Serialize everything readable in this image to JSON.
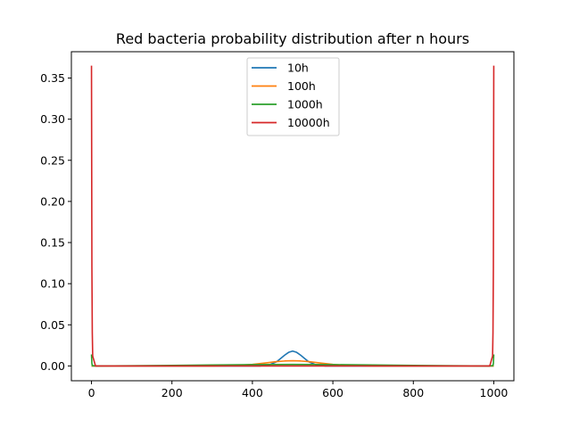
{
  "chart_data": {
    "type": "line",
    "title": "Red bacteria probability distribution after n hours",
    "xlabel": "",
    "ylabel": "",
    "xlim": [
      -50,
      1050
    ],
    "ylim": [
      -0.018,
      0.382
    ],
    "xticks": [
      0,
      200,
      400,
      600,
      800,
      1000
    ],
    "xtick_labels": [
      "0",
      "200",
      "400",
      "600",
      "800",
      "1000"
    ],
    "yticks": [
      0.0,
      0.05,
      0.1,
      0.15,
      0.2,
      0.25,
      0.3,
      0.35
    ],
    "ytick_labels": [
      "0.00",
      "0.05",
      "0.10",
      "0.15",
      "0.20",
      "0.25",
      "0.30",
      "0.35"
    ],
    "grid": false,
    "legend_position": "top-center",
    "series": [
      {
        "name": "10h",
        "color": "#1f77b4",
        "x": [
          0,
          2,
          10,
          100,
          200,
          300,
          400,
          420,
          440,
          460,
          470,
          480,
          490,
          500,
          510,
          520,
          530,
          540,
          560,
          580,
          600,
          700,
          800,
          900,
          990,
          998,
          1000
        ],
        "y": [
          0.0,
          0.0,
          0.0,
          0.0,
          0.0,
          0.0,
          0.0,
          0.0,
          0.0008,
          0.005,
          0.009,
          0.013,
          0.0165,
          0.018,
          0.0165,
          0.013,
          0.009,
          0.005,
          0.0008,
          0.0,
          0.0,
          0.0,
          0.0,
          0.0,
          0.0,
          0.0,
          0.0
        ]
      },
      {
        "name": "100h",
        "color": "#ff7f0e",
        "x": [
          0,
          2,
          10,
          100,
          200,
          300,
          350,
          400,
          430,
          460,
          480,
          500,
          520,
          540,
          570,
          600,
          650,
          700,
          800,
          900,
          990,
          998,
          1000
        ],
        "y": [
          0.0,
          0.0,
          0.0,
          0.0,
          0.0,
          0.0,
          0.0003,
          0.0018,
          0.0035,
          0.0052,
          0.006,
          0.0063,
          0.006,
          0.0052,
          0.0035,
          0.0018,
          0.0003,
          0.0,
          0.0,
          0.0,
          0.0,
          0.0,
          0.0
        ]
      },
      {
        "name": "1000h",
        "color": "#2ca02c",
        "x": [
          0,
          1,
          2,
          10,
          100,
          200,
          300,
          400,
          500,
          600,
          700,
          800,
          900,
          990,
          998,
          999,
          1000
        ],
        "y": [
          0.014,
          0.003,
          0.0005,
          0.0,
          0.0003,
          0.0007,
          0.0012,
          0.0016,
          0.0018,
          0.0016,
          0.0012,
          0.0007,
          0.0003,
          0.0,
          0.0005,
          0.003,
          0.014
        ]
      },
      {
        "name": "10000h",
        "color": "#d62728",
        "x": [
          0,
          1,
          2,
          3,
          10,
          100,
          300,
          500,
          700,
          900,
          990,
          997,
          998,
          999,
          1000
        ],
        "y": [
          0.365,
          0.12,
          0.04,
          0.012,
          0.0,
          0.0,
          0.0,
          0.0,
          0.0,
          0.0,
          0.0,
          0.012,
          0.04,
          0.12,
          0.365
        ]
      }
    ]
  }
}
